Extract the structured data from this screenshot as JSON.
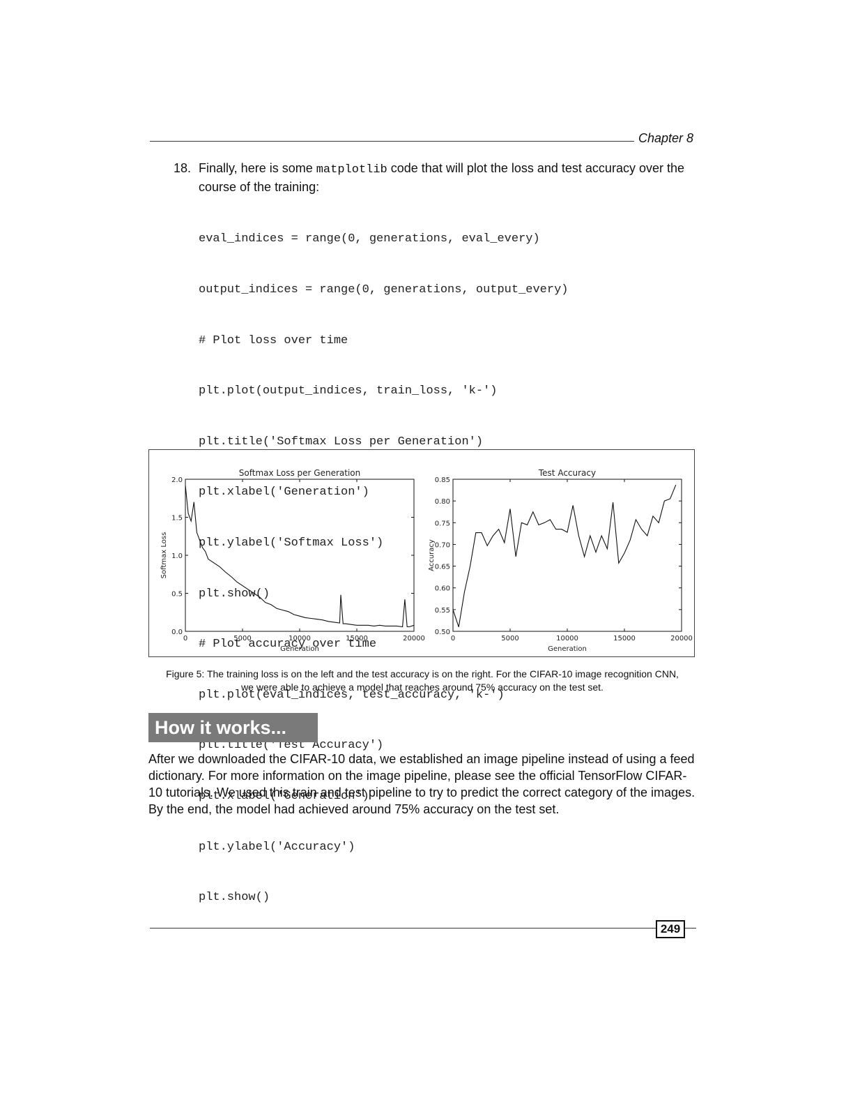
{
  "header": {
    "chapter": "Chapter 8"
  },
  "step": {
    "number": "18.",
    "text_before": "Finally, here is some ",
    "inline_code": "matplotlib",
    "text_after": " code that will plot the loss and test accuracy over the course of the training:"
  },
  "code_lines": [
    "eval_indices = range(0, generations, eval_every)",
    "output_indices = range(0, generations, output_every)",
    "# Plot loss over time",
    "plt.plot(output_indices, train_loss, 'k-')",
    "plt.title('Softmax Loss per Generation')",
    "plt.xlabel('Generation')",
    "plt.ylabel('Softmax Loss')",
    "plt.show()",
    "# Plot accuracy over time",
    "plt.plot(eval_indices, test_accuracy, 'k-')",
    "plt.title('Test Accuracy')",
    "plt.xlabel('Generation')",
    "plt.ylabel('Accuracy')",
    "plt.show()"
  ],
  "chart_data": [
    {
      "type": "line",
      "title": "Softmax Loss per Generation",
      "xlabel": "Generation",
      "ylabel": "Softmax Loss",
      "xlim": [
        0,
        20000
      ],
      "ylim": [
        0.0,
        2.0
      ],
      "xticks": [
        "0",
        "5000",
        "10000",
        "15000",
        "20000"
      ],
      "yticks": [
        "0.0",
        "0.5",
        "1.0",
        "1.5",
        "2.0"
      ],
      "grid": false,
      "x": [
        0,
        250,
        500,
        750,
        1000,
        1250,
        1500,
        1750,
        2000,
        2500,
        3000,
        3500,
        4000,
        4500,
        5000,
        5500,
        6000,
        6500,
        7000,
        7500,
        8000,
        8500,
        9000,
        9500,
        10000,
        10500,
        11000,
        11500,
        12000,
        12500,
        13000,
        13500,
        13600,
        13800,
        14000,
        14500,
        15000,
        15500,
        16000,
        16500,
        17000,
        17500,
        18000,
        18500,
        19000,
        19200,
        19400,
        19600,
        20000
      ],
      "y": [
        1.92,
        1.55,
        1.45,
        1.7,
        1.3,
        1.2,
        1.1,
        1.05,
        0.95,
        0.9,
        0.85,
        0.78,
        0.72,
        0.65,
        0.6,
        0.55,
        0.5,
        0.45,
        0.38,
        0.35,
        0.3,
        0.28,
        0.26,
        0.22,
        0.2,
        0.18,
        0.17,
        0.16,
        0.15,
        0.13,
        0.12,
        0.11,
        0.48,
        0.1,
        0.1,
        0.09,
        0.08,
        0.08,
        0.08,
        0.07,
        0.08,
        0.07,
        0.07,
        0.07,
        0.06,
        0.42,
        0.06,
        0.06,
        0.08
      ]
    },
    {
      "type": "line",
      "title": "Test Accuracy",
      "xlabel": "Generation",
      "ylabel": "Accuracy",
      "xlim": [
        0,
        20000
      ],
      "ylim": [
        0.5,
        0.85
      ],
      "xticks": [
        "0",
        "5000",
        "10000",
        "15000",
        "20000"
      ],
      "yticks": [
        "0.50",
        "0.55",
        "0.60",
        "0.65",
        "0.70",
        "0.75",
        "0.80",
        "0.85"
      ],
      "grid": false,
      "x": [
        0,
        500,
        1000,
        1500,
        2000,
        2500,
        3000,
        3500,
        4000,
        4500,
        5000,
        5500,
        6000,
        6500,
        7000,
        7500,
        8000,
        8500,
        9000,
        9500,
        10000,
        10500,
        11000,
        11500,
        12000,
        12500,
        13000,
        13500,
        14000,
        14500,
        15000,
        15500,
        16000,
        16500,
        17000,
        17500,
        18000,
        18500,
        19000,
        19500
      ],
      "y": [
        0.55,
        0.51,
        0.59,
        0.65,
        0.727,
        0.727,
        0.697,
        0.72,
        0.735,
        0.704,
        0.782,
        0.672,
        0.75,
        0.745,
        0.775,
        0.745,
        0.75,
        0.757,
        0.735,
        0.735,
        0.728,
        0.79,
        0.72,
        0.672,
        0.72,
        0.682,
        0.72,
        0.69,
        0.797,
        0.657,
        0.68,
        0.71,
        0.757,
        0.735,
        0.72,
        0.765,
        0.75,
        0.8,
        0.805,
        0.837
      ]
    }
  ],
  "caption": {
    "line1": "Figure 5: The training loss is on the left and the test accuracy is on the right. For the CIFAR-10 image recognition CNN,",
    "line2": "we were able to achieve a model that reaches around 75% accuracy on the test set."
  },
  "section": {
    "heading": "How it works..."
  },
  "paragraph": "After we downloaded the CIFAR-10 data, we established an image pipeline instead of using a feed dictionary. For more information on the image pipeline, please see the official TensorFlow CIFAR-10 tutorials. We used this train and test pipeline to try to predict the correct category of the images. By the end, the model had achieved around 75% accuracy on the test set.",
  "footer": {
    "page_number": "249"
  }
}
